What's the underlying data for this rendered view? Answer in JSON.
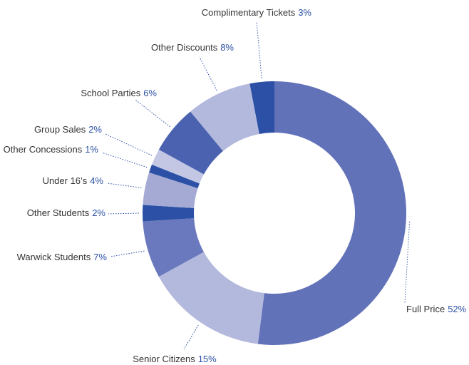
{
  "chart_data": {
    "type": "donut",
    "categories": [
      "Full Price",
      "Senior Citizens",
      "Warwick Students",
      "Other Students",
      "Under 16’s",
      "Other Concessions",
      "Group Sales",
      "School Parties",
      "Other Discounts",
      "Complimentary Tickets"
    ],
    "values": [
      52,
      15,
      7,
      2,
      4,
      1,
      2,
      6,
      8,
      3
    ],
    "value_labels": [
      "52%",
      "15%",
      "7%",
      "2%",
      "4%",
      "1%",
      "2%",
      "6%",
      "8%",
      "3%"
    ],
    "colors": [
      "#6272b8",
      "#b3b8dd",
      "#6a78bd",
      "#2b50a5",
      "#a5aad5",
      "#2b50a5",
      "#c3c7e4",
      "#4a62b0",
      "#b3b8dd",
      "#2b50a5"
    ]
  }
}
